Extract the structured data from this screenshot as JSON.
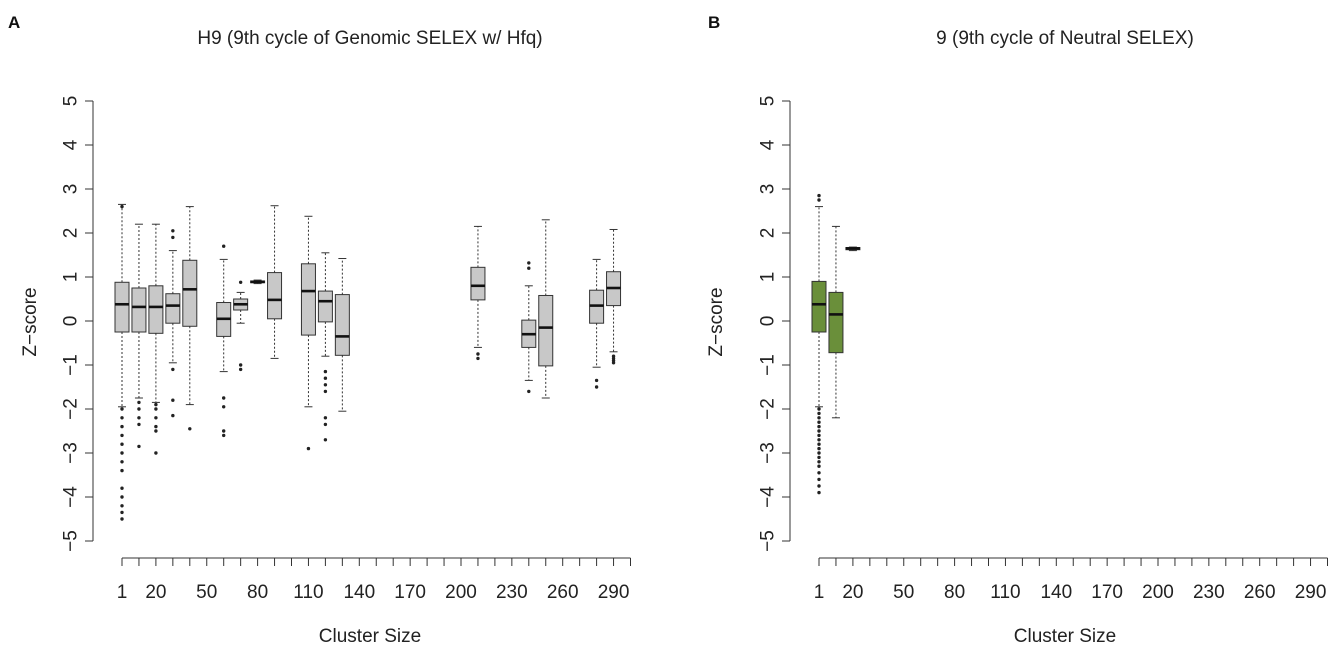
{
  "chart_data": [
    {
      "panel": "A",
      "type": "boxplot",
      "title": "H9 (9th cycle of Genomic SELEX w/ Hfq)",
      "xlabel": "Cluster Size",
      "ylabel": "Z−score",
      "ylim": [
        -5,
        5
      ],
      "y_ticks": [
        -5,
        -4,
        -3,
        -2,
        -1,
        0,
        1,
        2,
        3,
        4,
        5
      ],
      "y_tick_labels": [
        "−5",
        "−4",
        "−3",
        "−2",
        "−1",
        "0",
        "1",
        "2",
        "3",
        "4",
        "5"
      ],
      "x_positions": [
        1,
        10,
        20,
        30,
        40,
        50,
        60,
        70,
        80,
        90,
        100,
        110,
        120,
        130,
        140,
        150,
        160,
        170,
        180,
        190,
        200,
        210,
        220,
        230,
        240,
        250,
        260,
        270,
        280,
        290,
        300
      ],
      "x_tick_labels": [
        "1",
        "20",
        "50",
        "80",
        "110",
        "140",
        "170",
        "200",
        "230",
        "260",
        "290"
      ],
      "x_tick_label_values": [
        1,
        20,
        50,
        80,
        110,
        140,
        170,
        200,
        230,
        260,
        290
      ],
      "box_color": "#c8c8c8",
      "boxes": [
        {
          "x": 1,
          "whisker_low": -1.95,
          "q1": -0.25,
          "median": 0.38,
          "q3": 0.88,
          "whisker_high": 2.65,
          "outliers": [
            -2.0,
            -2.2,
            -2.4,
            -2.6,
            -2.8,
            -3.0,
            -3.2,
            -3.4,
            -3.8,
            -4.0,
            -4.2,
            -4.35,
            -4.5,
            2.6
          ]
        },
        {
          "x": 10,
          "whisker_low": -1.75,
          "q1": -0.25,
          "median": 0.32,
          "q3": 0.75,
          "whisker_high": 2.2,
          "outliers": [
            -1.85,
            -2.0,
            -2.2,
            -2.35,
            -2.85
          ]
        },
        {
          "x": 20,
          "whisker_low": -1.85,
          "q1": -0.28,
          "median": 0.32,
          "q3": 0.8,
          "whisker_high": 2.2,
          "outliers": [
            -1.9,
            -2.0,
            -2.2,
            -2.4,
            -2.5,
            -3.0
          ]
        },
        {
          "x": 30,
          "whisker_low": -0.95,
          "q1": -0.05,
          "median": 0.35,
          "q3": 0.62,
          "whisker_high": 1.6,
          "outliers": [
            -1.1,
            -1.8,
            -2.15,
            1.9,
            2.05
          ]
        },
        {
          "x": 40,
          "whisker_low": -1.9,
          "q1": -0.12,
          "median": 0.72,
          "q3": 1.38,
          "whisker_high": 2.6,
          "outliers": [
            -2.45
          ]
        },
        {
          "x": 60,
          "whisker_low": -1.15,
          "q1": -0.35,
          "median": 0.05,
          "q3": 0.42,
          "whisker_high": 1.4,
          "outliers": [
            -1.75,
            -1.95,
            -2.5,
            -2.6,
            1.7
          ]
        },
        {
          "x": 70,
          "whisker_low": -0.05,
          "q1": 0.25,
          "median": 0.38,
          "q3": 0.5,
          "whisker_high": 0.65,
          "outliers": [
            -1.0,
            -1.1,
            0.88
          ]
        },
        {
          "x": 80,
          "whisker_low": 0.85,
          "q1": 0.87,
          "median": 0.89,
          "q3": 0.91,
          "whisker_high": 0.93,
          "outliers": []
        },
        {
          "x": 90,
          "whisker_low": -0.85,
          "q1": 0.05,
          "median": 0.48,
          "q3": 1.1,
          "whisker_high": 2.62,
          "outliers": []
        },
        {
          "x": 110,
          "whisker_low": -1.95,
          "q1": -0.32,
          "median": 0.68,
          "q3": 1.3,
          "whisker_high": 2.38,
          "outliers": [
            -2.9
          ]
        },
        {
          "x": 120,
          "whisker_low": -0.8,
          "q1": -0.02,
          "median": 0.45,
          "q3": 0.68,
          "whisker_high": 1.55,
          "outliers": [
            -1.15,
            -1.3,
            -1.45,
            -1.6,
            -2.2,
            -2.35,
            -2.7
          ]
        },
        {
          "x": 130,
          "whisker_low": -2.05,
          "q1": -0.78,
          "median": -0.35,
          "q3": 0.6,
          "whisker_high": 1.42,
          "outliers": []
        },
        {
          "x": 210,
          "whisker_low": -0.6,
          "q1": 0.48,
          "median": 0.8,
          "q3": 1.22,
          "whisker_high": 2.15,
          "outliers": [
            -0.75,
            -0.85
          ]
        },
        {
          "x": 240,
          "whisker_low": -1.35,
          "q1": -0.6,
          "median": -0.3,
          "q3": 0.02,
          "whisker_high": 0.8,
          "outliers": [
            -1.6,
            1.2,
            1.32
          ]
        },
        {
          "x": 250,
          "whisker_low": -1.75,
          "q1": -1.02,
          "median": -0.15,
          "q3": 0.58,
          "whisker_high": 2.3,
          "outliers": []
        },
        {
          "x": 280,
          "whisker_low": -1.05,
          "q1": -0.05,
          "median": 0.35,
          "q3": 0.7,
          "whisker_high": 1.4,
          "outliers": [
            -1.35,
            -1.5
          ]
        },
        {
          "x": 290,
          "whisker_low": -0.7,
          "q1": 0.35,
          "median": 0.75,
          "q3": 1.12,
          "whisker_high": 2.08,
          "outliers": [
            -0.8,
            -0.85,
            -0.9,
            -0.95
          ]
        }
      ]
    },
    {
      "panel": "B",
      "type": "boxplot",
      "title": "9 (9th cycle of Neutral SELEX)",
      "xlabel": "Cluster Size",
      "ylabel": "Z−score",
      "ylim": [
        -5,
        5
      ],
      "y_ticks": [
        -5,
        -4,
        -3,
        -2,
        -1,
        0,
        1,
        2,
        3,
        4,
        5
      ],
      "y_tick_labels": [
        "−5",
        "−4",
        "−3",
        "−2",
        "−1",
        "0",
        "1",
        "2",
        "3",
        "4",
        "5"
      ],
      "x_positions": [
        1,
        10,
        20,
        30,
        40,
        50,
        60,
        70,
        80,
        90,
        100,
        110,
        120,
        130,
        140,
        150,
        160,
        170,
        180,
        190,
        200,
        210,
        220,
        230,
        240,
        250,
        260,
        270,
        280,
        290,
        300
      ],
      "x_tick_labels": [
        "1",
        "20",
        "50",
        "80",
        "110",
        "140",
        "170",
        "200",
        "230",
        "260",
        "290"
      ],
      "x_tick_label_values": [
        1,
        20,
        50,
        80,
        110,
        140,
        170,
        200,
        230,
        260,
        290
      ],
      "box_color": "#6a8f3a",
      "boxes": [
        {
          "x": 1,
          "whisker_low": -1.95,
          "q1": -0.25,
          "median": 0.38,
          "q3": 0.9,
          "whisker_high": 2.6,
          "outliers": [
            -2.0,
            -2.1,
            -2.2,
            -2.3,
            -2.4,
            -2.5,
            -2.6,
            -2.7,
            -2.8,
            -2.9,
            -3.0,
            -3.1,
            -3.2,
            -3.3,
            -3.45,
            -3.6,
            -3.75,
            -3.9,
            2.75,
            2.85
          ]
        },
        {
          "x": 10,
          "whisker_low": -2.2,
          "q1": -0.72,
          "median": 0.15,
          "q3": 0.65,
          "whisker_high": 2.15,
          "outliers": []
        },
        {
          "x": 20,
          "whisker_low": 1.6,
          "q1": 1.62,
          "median": 1.65,
          "q3": 1.67,
          "whisker_high": 1.68,
          "outliers": []
        }
      ]
    }
  ]
}
